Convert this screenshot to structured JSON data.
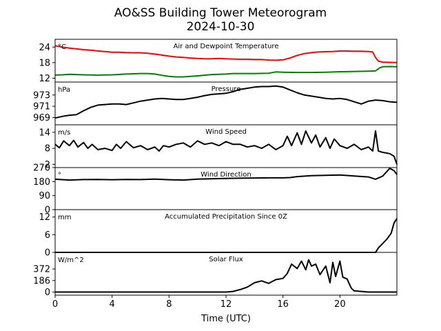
{
  "title_line1": "AO&SS Building Tower Meteorogram",
  "title_line2": "2024-10-30",
  "chart_data": {
    "type": "line",
    "xlabel": "Time (UTC)",
    "xlim": [
      0,
      24
    ],
    "x_ticks": [
      0,
      4,
      8,
      12,
      16,
      20
    ],
    "panels": [
      {
        "id": "temperature",
        "title": "Air and Dewpoint Temperature",
        "unit": "°C",
        "ylim": [
          10.5,
          27
        ],
        "y_ticks": [
          12,
          18,
          24
        ],
        "series": [
          {
            "color": "#ff0000",
            "x": [
              0,
              0.5,
              1,
              1.5,
              2,
              2.5,
              3,
              3.5,
              4,
              4.5,
              5,
              5.5,
              6,
              6.5,
              7,
              7.5,
              8,
              8.5,
              9,
              9.5,
              10,
              10.5,
              11,
              11.5,
              12,
              12.5,
              13,
              13.5,
              14,
              14.5,
              15,
              15.5,
              16,
              16.5,
              17,
              17.5,
              18,
              18.5,
              19,
              19.5,
              20,
              20.5,
              21,
              21.5,
              22,
              22.3,
              22.5,
              22.7,
              23,
              23.5,
              24
            ],
            "values": [
              24.5,
              24.0,
              23.6,
              23.3,
              23.0,
              22.8,
              22.5,
              22.3,
              22.0,
              22.0,
              21.9,
              21.8,
              21.8,
              21.6,
              21.3,
              20.9,
              20.5,
              20.2,
              20.0,
              19.8,
              19.6,
              19.5,
              19.5,
              19.6,
              19.5,
              19.4,
              19.3,
              19.3,
              19.2,
              19.2,
              19.0,
              18.9,
              19.1,
              19.8,
              20.8,
              21.5,
              21.9,
              22.1,
              22.2,
              22.3,
              22.5,
              22.5,
              22.4,
              22.4,
              22.3,
              22.1,
              20.0,
              18.6,
              18.2,
              18.1,
              18.0
            ]
          },
          {
            "color": "#008000",
            "x": [
              0,
              0.5,
              1,
              2,
              3,
              4,
              5,
              6,
              6.5,
              7,
              7.5,
              8,
              8.5,
              9,
              10,
              11,
              12,
              12.5,
              13,
              14,
              15,
              15.5,
              16,
              17,
              18,
              19,
              20,
              21,
              22,
              22.5,
              22.8,
              23,
              23.5,
              24
            ],
            "values": [
              13.2,
              13.3,
              13.5,
              13.3,
              13.2,
              13.3,
              13.6,
              13.8,
              13.8,
              13.6,
              13.1,
              12.7,
              12.5,
              12.5,
              12.9,
              13.4,
              13.6,
              13.8,
              13.8,
              13.8,
              13.9,
              14.4,
              14.3,
              14.2,
              14.2,
              14.3,
              14.5,
              14.6,
              14.7,
              14.8,
              16.0,
              16.4,
              16.5,
              16.4
            ]
          }
        ]
      },
      {
        "id": "pressure",
        "title": "Pressure",
        "unit": "hPa",
        "ylim": [
          967.7,
          975.3
        ],
        "y_ticks": [
          969,
          971,
          973
        ],
        "series": [
          {
            "color": "#000000",
            "x": [
              0,
              0.5,
              1,
              1.5,
              2,
              2.5,
              3,
              3.5,
              4,
              4.5,
              5,
              5.5,
              6,
              6.5,
              7,
              7.5,
              8,
              8.5,
              9,
              9.5,
              10,
              10.5,
              11,
              11.5,
              12,
              12.5,
              13,
              13.5,
              14,
              14.5,
              15,
              15.5,
              16,
              16.5,
              17,
              17.5,
              18,
              18.5,
              19,
              19.5,
              20,
              20.5,
              21,
              21.5,
              22,
              22.5,
              23,
              23.5,
              24
            ],
            "values": [
              968.9,
              969.2,
              969.4,
              969.5,
              970.2,
              970.8,
              971.2,
              971.3,
              971.4,
              971.4,
              971.3,
              971.6,
              971.9,
              972.1,
              972.3,
              972.4,
              972.3,
              972.2,
              972.2,
              972.4,
              972.6,
              972.9,
              973.1,
              973.2,
              973.3,
              973.6,
              974.0,
              974.2,
              974.4,
              974.5,
              974.5,
              974.6,
              974.4,
              973.9,
              973.4,
              973.0,
              972.8,
              972.6,
              972.4,
              972.3,
              972.4,
              972.2,
              971.8,
              971.4,
              971.9,
              972.1,
              972.0,
              971.8,
              971.7
            ]
          }
        ]
      },
      {
        "id": "wind_speed",
        "title": "Wind Speed",
        "unit": "m/s",
        "ylim": [
          0.8,
          16.8
        ],
        "y_ticks": [
          2,
          8,
          14
        ],
        "series": [
          {
            "color": "#000000",
            "x": [
              0,
              0.3,
              0.6,
              1,
              1.3,
              1.6,
              2,
              2.3,
              2.6,
              3,
              3.5,
              4,
              4.3,
              4.6,
              5,
              5.5,
              6,
              6.5,
              7,
              7.3,
              7.6,
              8,
              8.5,
              9,
              9.5,
              10,
              10.5,
              11,
              11.5,
              12,
              12.5,
              13,
              13.5,
              14,
              14.5,
              15,
              15.5,
              16,
              16.3,
              16.6,
              17,
              17.3,
              17.6,
              18,
              18.3,
              18.6,
              19,
              19.3,
              19.6,
              20,
              20.5,
              21,
              21.5,
              22,
              22.3,
              22.5,
              22.7,
              23,
              23.5,
              23.8,
              24
            ],
            "values": [
              9.5,
              8.2,
              10.8,
              9.0,
              11.0,
              8.5,
              10.2,
              8.0,
              9.5,
              7.5,
              8.0,
              7.2,
              9.5,
              8.0,
              10.5,
              8.2,
              9.0,
              7.5,
              8.5,
              7.0,
              9.0,
              8.5,
              9.5,
              10.0,
              8.5,
              10.8,
              9.5,
              10.0,
              9.0,
              10.5,
              9.5,
              9.5,
              8.5,
              9.0,
              8.0,
              9.5,
              7.5,
              9.0,
              12.5,
              9.0,
              13.8,
              9.5,
              14.5,
              10.0,
              13.0,
              8.5,
              12.0,
              8.0,
              11.5,
              9.0,
              8.0,
              9.5,
              7.5,
              8.5,
              7.0,
              14.5,
              7.0,
              6.5,
              6.0,
              5.0,
              2.0
            ]
          }
        ]
      },
      {
        "id": "wind_direction",
        "title": "Wind Direction",
        "unit": "°",
        "ylim": [
          0,
          270
        ],
        "y_ticks": [
          0,
          90,
          180,
          270
        ],
        "series": [
          {
            "color": "#000000",
            "x": [
              0,
              1,
              2,
              3,
              4,
              5,
              6,
              7,
              8,
              9,
              10,
              11,
              12,
              13,
              14,
              15,
              16,
              16.5,
              17,
              18,
              19,
              20,
              21,
              22,
              22.5,
              23,
              23.5,
              23.8,
              24
            ],
            "values": [
              195,
              190,
              193,
              194,
              192,
              194,
              193,
              196,
              192,
              190,
              196,
              198,
              200,
              202,
              203,
              204,
              204,
              206,
              212,
              218,
              220,
              222,
              216,
              210,
              195,
              215,
              265,
              250,
              225
            ]
          }
        ]
      },
      {
        "id": "precipitation",
        "title": "Accumulated Precipitation Since 0Z",
        "unit": "mm",
        "ylim": [
          0,
          14.5
        ],
        "y_ticks": [
          0,
          6,
          12
        ],
        "series": [
          {
            "color": "#000000",
            "x": [
              0,
              22.5,
              22.7,
              23,
              23.3,
              23.6,
              23.8,
              24
            ],
            "values": [
              0,
              0,
              1.5,
              3.0,
              4.5,
              6.5,
              10.0,
              11.5
            ]
          }
        ]
      },
      {
        "id": "solar_flux",
        "title": "Solar Flux",
        "unit": "W/m^2",
        "ylim": [
          -50,
          640
        ],
        "y_ticks": [
          0,
          186,
          372
        ],
        "series": [
          {
            "color": "#000000",
            "x": [
              0,
              12,
              12.5,
              13,
              13.5,
              14,
              14.5,
              15,
              15.5,
              16,
              16.3,
              16.6,
              17,
              17.3,
              17.6,
              17.8,
              18,
              18.3,
              18.6,
              19,
              19.3,
              19.5,
              19.7,
              20,
              20.2,
              20.5,
              20.8,
              21,
              21.5,
              22,
              24
            ],
            "values": [
              0,
              0,
              10,
              40,
              80,
              150,
              180,
              140,
              200,
              220,
              300,
              450,
              380,
              500,
              360,
              520,
              420,
              450,
              280,
              420,
              150,
              480,
              250,
              500,
              240,
              210,
              60,
              20,
              10,
              0,
              0
            ]
          }
        ]
      }
    ]
  }
}
